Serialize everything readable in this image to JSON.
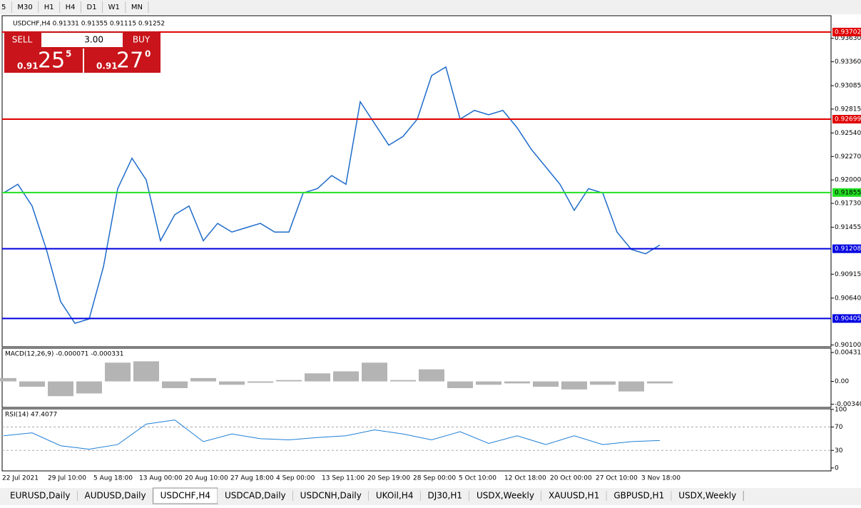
{
  "toolbar": {
    "timeframes": [
      "5",
      "M30",
      "H1",
      "H4",
      "D1",
      "W1",
      "MN"
    ]
  },
  "trade_panel": {
    "sell": "SELL",
    "lots": "3.00",
    "buy": "BUY",
    "sell_big": "0.91",
    "sell_pips": "25",
    "sell_frac": "5",
    "buy_big": "0.91",
    "buy_pips": "27",
    "buy_frac": "0"
  },
  "chart_data": [
    {
      "type": "line",
      "title": "USDCHF,H4  0.91331 0.91355 0.91115 0.91252",
      "color": "#1e6bc9",
      "values": [
        0.9185,
        0.9195,
        0.917,
        0.912,
        0.906,
        0.9035,
        0.904,
        0.91,
        0.919,
        0.9225,
        0.92,
        0.913,
        0.916,
        0.917,
        0.913,
        0.915,
        0.914,
        0.9145,
        0.915,
        0.914,
        0.914,
        0.9185,
        0.919,
        0.9205,
        0.9195,
        0.929,
        0.9265,
        0.924,
        0.925,
        0.927,
        0.932,
        0.933,
        0.927,
        0.928,
        0.9275,
        0.928,
        0.926,
        0.9235,
        0.9215,
        0.9195,
        0.9165,
        0.919,
        0.9185,
        0.914,
        0.912,
        0.9115,
        0.9125
      ],
      "ylim": [
        0.9008,
        0.9389
      ],
      "yticks": [
        {
          "value": 0.9363,
          "label": "0.93630"
        },
        {
          "value": 0.9336,
          "label": "0.93360"
        },
        0.93085,
        0.92815,
        {
          "value": 0.9254,
          "label": "0.92540"
        },
        {
          "value": 0.9227,
          "label": "0.92270"
        },
        {
          "value": 0.92,
          "label": "0.92000"
        },
        {
          "value": 0.9173,
          "label": "0.91730"
        },
        0.91455,
        0.90915,
        {
          "value": 0.9064,
          "label": "0.90640"
        },
        {
          "value": 0.901,
          "label": "0.90100"
        }
      ],
      "levels": [
        {
          "value": 0.93702,
          "color": "#e00000"
        },
        {
          "value": 0.92699,
          "color": "#e00000"
        },
        {
          "value": 0.91855,
          "color": "#22e022"
        },
        {
          "value": 0.91208,
          "color": "#0000e0"
        },
        {
          "value": 0.90405,
          "color": "#0000e0"
        }
      ]
    },
    {
      "type": "bar",
      "title": "MACD(12,26,9) -0.000071 -0.000331",
      "color": "#b4b4b4",
      "values": [
        0.0005,
        -0.0008,
        -0.0022,
        -0.0018,
        0.0028,
        0.003,
        -0.001,
        0.0005,
        -0.0005,
        -0.0002,
        0.0002,
        0.0012,
        0.0015,
        0.0028,
        0.0002,
        0.0018,
        -0.001,
        -0.0005,
        -0.0003,
        -0.0008,
        -0.0012,
        -0.0005,
        -0.0015,
        -0.0003
      ],
      "ylim": [
        -0.00388,
        0.00496
      ],
      "yticks": [
        0.00431,
        {
          "value": 0,
          "label": "0.00"
        },
        -0.003405
      ]
    },
    {
      "type": "line",
      "title": "RSI(14) 47.4077",
      "color": "#1e7fd6",
      "values": [
        55,
        60,
        38,
        32,
        40,
        75,
        82,
        45,
        58,
        50,
        48,
        52,
        55,
        65,
        58,
        48,
        62,
        42,
        55,
        40,
        55,
        40,
        45,
        47
      ],
      "ylim": [
        -5,
        101
      ],
      "yticks": [
        100,
        70,
        30,
        0
      ],
      "time_labels": [
        "22 Jul 2021",
        "29 Jul 10:00",
        "5 Aug 18:00",
        "13 Aug 00:00",
        "20 Aug 10:00",
        "27 Aug 18:00",
        "4 Sep 00:00",
        "13 Sep 11:00",
        "20 Sep 19:00",
        "28 Sep 00:00",
        "5 Oct 10:00",
        "12 Oct 18:00",
        "20 Oct 00:00",
        "27 Oct 10:00",
        "3 Nov 18:00"
      ]
    }
  ],
  "tabs": [
    "EURUSD,Daily",
    "AUDUSD,Daily",
    "USDCHF,H4",
    "USDCAD,Daily",
    "USDCNH,Daily",
    "UKOil,H4",
    "DJ30,H1",
    "USDX,Weekly",
    "XAUUSD,H1",
    "GBPUSD,H1",
    "USDX,Weekly"
  ],
  "active_tab": 2
}
